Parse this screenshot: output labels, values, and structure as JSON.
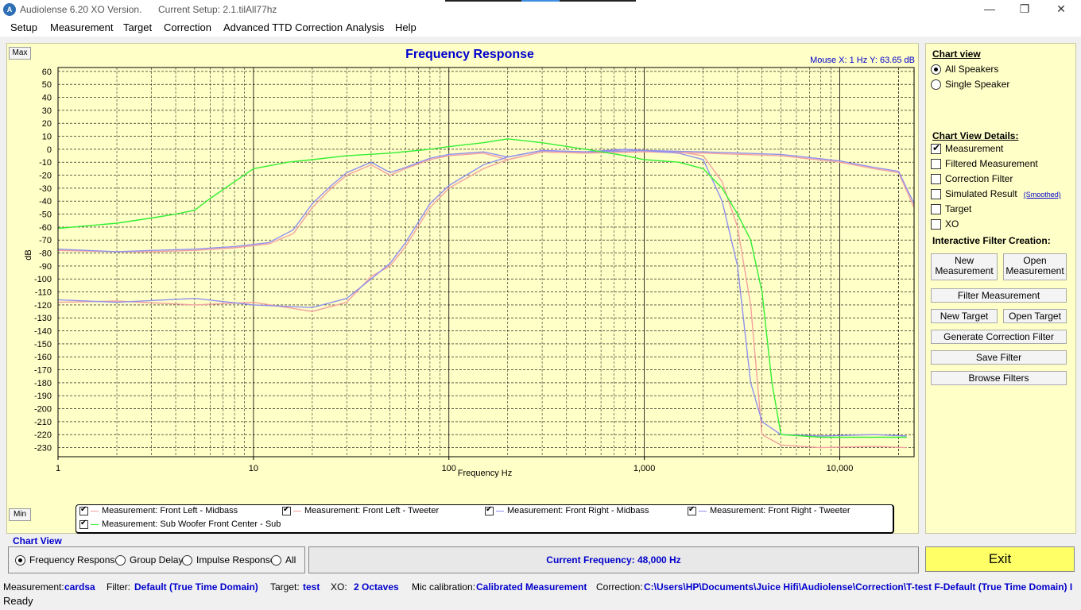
{
  "window": {
    "title": "Audiolense 6.20 XO Version.",
    "setup": "Current Setup: 2.1.tilAll77hz",
    "minimize": "—",
    "maximize": "❐",
    "close": "✕"
  },
  "menu": [
    "Setup",
    "Measurement",
    "Target",
    "Correction",
    "Advanced TTD Correction",
    "Analysis",
    "Help"
  ],
  "chart_buttons": {
    "max": "Max",
    "min": "Min"
  },
  "mouse_readout": "Mouse X: 1 Hz   Y: 63.65 dB",
  "chart_data": {
    "type": "line",
    "title": "Frequency Response",
    "xlabel": "Frequency Hz",
    "ylabel": "dB",
    "xscale": "log",
    "xlim": [
      1,
      24000
    ],
    "ylim": [
      -237,
      63
    ],
    "grid": true,
    "x_ticks": [
      1,
      10,
      100,
      1000,
      10000
    ],
    "x_tick_labels": [
      "1",
      "10",
      "100",
      "1,000",
      "10,000"
    ],
    "y_ticks": [
      60,
      50,
      40,
      30,
      20,
      10,
      0,
      -10,
      -20,
      -30,
      -40,
      -50,
      -60,
      -70,
      -80,
      -90,
      -100,
      -110,
      -120,
      -130,
      -140,
      -150,
      -160,
      -170,
      -180,
      -190,
      -200,
      -210,
      -220,
      -230
    ],
    "series": [
      {
        "name": "Measurement: Front Left - Midbass",
        "color": "#f4a0a0",
        "x": [
          1,
          2,
          3,
          5,
          8,
          12,
          16,
          20,
          25,
          30,
          40,
          50,
          60,
          80,
          100,
          150,
          200,
          300,
          500,
          800,
          1000,
          1500,
          2000,
          2500,
          3000,
          3500,
          4000,
          5000,
          8000,
          15000,
          22000
        ],
        "y": [
          -78,
          -79,
          -79,
          -78,
          -76,
          -73,
          -65,
          -45,
          -30,
          -20,
          -12,
          -20,
          -15,
          -8,
          -5,
          -3,
          -8,
          -2,
          -3,
          0,
          -1,
          -2,
          -5,
          -25,
          -60,
          -120,
          -220,
          -228,
          -230,
          -229,
          -230
        ]
      },
      {
        "name": "Measurement: Front Left - Tweeter",
        "color": "#f4a0a0",
        "x": [
          1,
          2,
          5,
          10,
          20,
          30,
          40,
          50,
          60,
          80,
          100,
          150,
          200,
          300,
          500,
          1000,
          2000,
          5000,
          10000,
          15000,
          20000,
          24000
        ],
        "y": [
          -118,
          -117,
          -120,
          -118,
          -125,
          -118,
          -98,
          -90,
          -75,
          -45,
          -30,
          -15,
          -8,
          -2,
          -3,
          -2,
          -3,
          -5,
          -10,
          -15,
          -18,
          -45
        ]
      },
      {
        "name": "Measurement: Front Right - Midbass",
        "color": "#9090ee",
        "x": [
          1,
          2,
          3,
          5,
          8,
          12,
          16,
          20,
          25,
          30,
          40,
          50,
          60,
          80,
          100,
          150,
          200,
          300,
          500,
          800,
          1000,
          1500,
          2000,
          2500,
          3000,
          3500,
          4000,
          5000,
          8000,
          15000,
          22000
        ],
        "y": [
          -77,
          -79,
          -78,
          -77,
          -75,
          -72,
          -62,
          -42,
          -28,
          -18,
          -10,
          -18,
          -14,
          -7,
          -4,
          -2,
          -6,
          -1,
          -2,
          0,
          -1,
          -3,
          -8,
          -40,
          -90,
          -180,
          -210,
          -220,
          -221,
          -220,
          -221
        ]
      },
      {
        "name": "Measurement: Front Right - Tweeter",
        "color": "#9090ee",
        "x": [
          1,
          2,
          5,
          10,
          20,
          30,
          40,
          50,
          60,
          80,
          100,
          150,
          200,
          300,
          500,
          1000,
          2000,
          5000,
          10000,
          15000,
          20000,
          24000
        ],
        "y": [
          -116,
          -118,
          -115,
          -120,
          -122,
          -115,
          -100,
          -88,
          -72,
          -42,
          -28,
          -12,
          -6,
          -1,
          -2,
          -1,
          -2,
          -4,
          -9,
          -14,
          -17,
          -42
        ]
      },
      {
        "name": "Measurement: Sub Woofer Front Center - Sub",
        "color": "#33ee33",
        "x": [
          1,
          2,
          3,
          4,
          5,
          6,
          8,
          10,
          15,
          20,
          30,
          50,
          80,
          100,
          150,
          200,
          300,
          500,
          800,
          1000,
          1500,
          2000,
          2500,
          3000,
          3500,
          4000,
          4500,
          5000,
          8000,
          15000,
          22000
        ],
        "y": [
          -61,
          -57,
          -53,
          -50,
          -47,
          -38,
          -25,
          -15,
          -10,
          -8,
          -5,
          -3,
          0,
          2,
          5,
          8,
          5,
          0,
          -5,
          -8,
          -10,
          -15,
          -30,
          -50,
          -70,
          -110,
          -180,
          -220,
          -222,
          -222,
          -222
        ]
      }
    ]
  },
  "legend": [
    {
      "label": "Measurement: Front Left - Midbass",
      "color": "#f4a0a0",
      "checked": true
    },
    {
      "label": "Measurement: Front Left - Tweeter",
      "color": "#f4a0a0",
      "checked": true
    },
    {
      "label": "Measurement: Front Right - Midbass",
      "color": "#9090ee",
      "checked": true
    },
    {
      "label": "Measurement: Front Right - Tweeter",
      "color": "#9090ee",
      "checked": true
    },
    {
      "label": "Measurement: Sub Woofer Front Center - Sub",
      "color": "#33ee33",
      "checked": true
    }
  ],
  "right_panel": {
    "chart_view_title": "Chart view",
    "all_speakers": "All Speakers",
    "single_speaker": "Single Speaker",
    "details_title": "Chart View Details:",
    "details": [
      {
        "label": "Measurement",
        "checked": true
      },
      {
        "label": "Filtered Measurement",
        "checked": false
      },
      {
        "label": "Correction Filter",
        "checked": false
      },
      {
        "label": "Simulated Result",
        "checked": false
      },
      {
        "label": "Target",
        "checked": false
      },
      {
        "label": "XO",
        "checked": false
      }
    ],
    "smoothed": "(Smoothed)",
    "filter_title": "Interactive Filter Creation:",
    "new_measurement": "New Measurement",
    "open_measurement": "Open Measurement",
    "filter_measurement": "Filter Measurement",
    "new_target": "New Target",
    "open_target": "Open Target",
    "generate_correction": "Generate Correction Filter",
    "save_filter": "Save Filter",
    "browse_filters": "Browse Filters"
  },
  "chart_view": {
    "label": "Chart View",
    "options": [
      "Frequency Response",
      "Group Delay",
      "Impulse Response",
      "All"
    ],
    "selected": "Frequency Response"
  },
  "current_frequency": "Current Frequency: 48,000 Hz",
  "exit_label": "Exit",
  "status": {
    "measurement_label": "Measurement:",
    "measurement": "cardsa",
    "filter_label": "Filter:",
    "filter": "Default (True Time Domain)",
    "target_label": "Target:",
    "target": "test",
    "xo_label": "XO:",
    "xo": "2 Octaves",
    "mic_label": "Mic calibration:",
    "mic": "Calibrated Measurement",
    "correction_label": "Correction:",
    "correction": "C:\\Users\\HP\\Documents\\Juice Hifi\\Audiolense\\Correction\\T-test F-Default (True Time Domain) I",
    "ready": "Ready"
  }
}
